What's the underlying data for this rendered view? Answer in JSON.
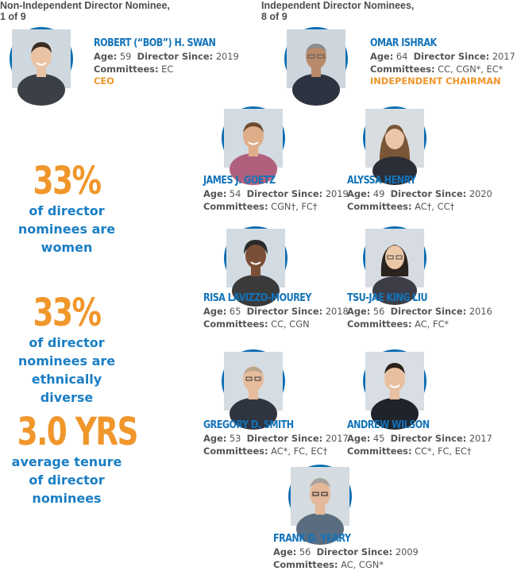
{
  "headers": {
    "non_independent": {
      "line1": "Non-Independent Director Nominee,",
      "line2": "1 of 9"
    },
    "independent": {
      "line1": "Independent Director Nominees,",
      "line2": "8 of 9"
    }
  },
  "labels": {
    "age": "Age:",
    "since": "Director Since:",
    "committees": "Committees:"
  },
  "directors": [
    {
      "name": "ROBERT (“BOB”) H. SWAN",
      "age": "59",
      "since": "2019",
      "committees": "EC",
      "role": "CEO"
    },
    {
      "name": "OMAR ISHRAK",
      "age": "64",
      "since": "2017",
      "committees": "CC, CGN*, EC*",
      "role": "INDEPENDENT CHAIRMAN"
    },
    {
      "name": "JAMES J. GOETZ",
      "age": "54",
      "since": "2019",
      "committees": "CGN†, FC†"
    },
    {
      "name": "ALYSSA HENRY",
      "age": "49",
      "since": "2020",
      "committees": "AC†, CC†"
    },
    {
      "name": "RISA LAVIZZO-MOUREY",
      "age": "65",
      "since": "2018",
      "committees": "CC, CGN"
    },
    {
      "name": "TSU-JAE KING LIU",
      "age": "56",
      "since": "2016",
      "committees": "AC, FC*"
    },
    {
      "name": "GREGORY D. SMITH",
      "age": "53",
      "since": "2017",
      "committees": "AC*, FC, EC†"
    },
    {
      "name": "ANDREW WILSON",
      "age": "45",
      "since": "2017",
      "committees": "CC*, FC, EC†"
    },
    {
      "name": "FRANK D. YEARY",
      "age": "56",
      "since": "2009",
      "committees": "AC, CGN*"
    }
  ],
  "stats": [
    {
      "value": "33%",
      "caption": "of director\nnominees are\nwomen"
    },
    {
      "value": "33%",
      "caption": "of director\nnominees are\nethnically diverse"
    },
    {
      "value": "3.0 YRS",
      "caption": "average tenure\nof director\nnominees"
    }
  ],
  "colors": {
    "blue": "#1273b9",
    "orange": "#f0962b",
    "ring": "#0a6db3"
  }
}
